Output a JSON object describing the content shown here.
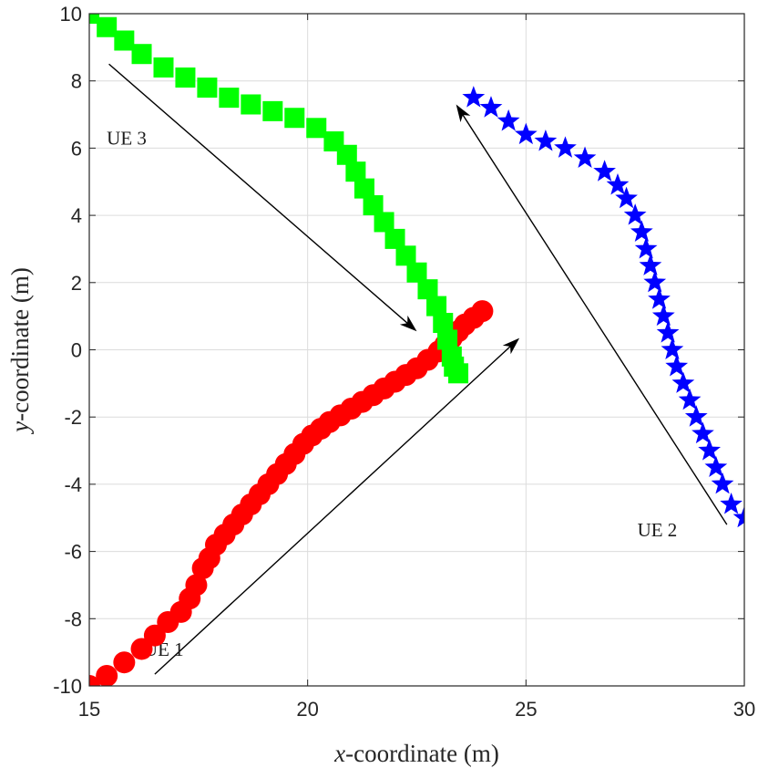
{
  "chart_data": {
    "type": "scatter",
    "title": "",
    "xlabel_var": "x",
    "xlabel_rest": "-coordinate (m)",
    "ylabel_var": "y",
    "ylabel_rest": "-coordinate (m)",
    "xlim": [
      15,
      30
    ],
    "ylim": [
      -10,
      10
    ],
    "xticks": [
      15,
      20,
      25,
      30
    ],
    "yticks": [
      -10,
      -8,
      -6,
      -4,
      -2,
      0,
      2,
      4,
      6,
      8,
      10
    ],
    "grid": true,
    "series": [
      {
        "name": "UE 1",
        "marker": "circle",
        "color": "#ff0000",
        "x": [
          15.0,
          15.4,
          15.8,
          16.2,
          16.5,
          16.8,
          17.1,
          17.3,
          17.45,
          17.6,
          17.75,
          17.9,
          18.1,
          18.3,
          18.5,
          18.7,
          18.9,
          19.1,
          19.3,
          19.5,
          19.7,
          19.9,
          20.1,
          20.3,
          20.5,
          20.75,
          21.0,
          21.25,
          21.5,
          21.75,
          22.0,
          22.25,
          22.5,
          22.75,
          23.0,
          23.15,
          23.3,
          23.45,
          23.6,
          23.8,
          24.0
        ],
        "y": [
          -10.0,
          -9.7,
          -9.3,
          -8.9,
          -8.5,
          -8.1,
          -7.8,
          -7.4,
          -7.0,
          -6.5,
          -6.2,
          -5.8,
          -5.5,
          -5.2,
          -4.9,
          -4.6,
          -4.3,
          -4.0,
          -3.7,
          -3.4,
          -3.1,
          -2.8,
          -2.55,
          -2.35,
          -2.15,
          -1.95,
          -1.75,
          -1.55,
          -1.35,
          -1.15,
          -0.95,
          -0.75,
          -0.55,
          -0.3,
          -0.05,
          0.15,
          0.35,
          0.55,
          0.75,
          0.95,
          1.15
        ]
      },
      {
        "name": "UE 2",
        "marker": "star",
        "color": "#0000ff",
        "x": [
          23.8,
          24.2,
          24.6,
          25.0,
          25.45,
          25.9,
          26.35,
          26.8,
          27.1,
          27.3,
          27.5,
          27.65,
          27.75,
          27.85,
          27.95,
          28.05,
          28.15,
          28.25,
          28.35,
          28.45,
          28.6,
          28.75,
          28.9,
          29.05,
          29.2,
          29.35,
          29.5,
          29.7,
          30.0
        ],
        "y": [
          7.5,
          7.2,
          6.8,
          6.4,
          6.2,
          6.0,
          5.7,
          5.3,
          4.9,
          4.5,
          4.0,
          3.5,
          3.0,
          2.5,
          2.0,
          1.5,
          1.0,
          0.5,
          0.0,
          -0.5,
          -1.0,
          -1.5,
          -2.0,
          -2.5,
          -3.0,
          -3.5,
          -4.0,
          -4.6,
          -5.0
        ]
      },
      {
        "name": "UE 3",
        "marker": "square",
        "color": "#00ff00",
        "x": [
          15.0,
          15.4,
          15.8,
          16.2,
          16.7,
          17.2,
          17.7,
          18.2,
          18.7,
          19.2,
          19.7,
          20.2,
          20.6,
          20.9,
          21.1,
          21.3,
          21.5,
          21.75,
          22.0,
          22.25,
          22.5,
          22.75,
          22.95,
          23.1,
          23.2,
          23.3,
          23.35,
          23.45
        ],
        "y": [
          10.0,
          9.6,
          9.2,
          8.8,
          8.4,
          8.1,
          7.8,
          7.5,
          7.3,
          7.1,
          6.9,
          6.6,
          6.2,
          5.8,
          5.3,
          4.8,
          4.3,
          3.8,
          3.3,
          2.8,
          2.3,
          1.8,
          1.3,
          0.8,
          0.3,
          -0.2,
          -0.5,
          -0.7
        ]
      }
    ],
    "annotations": [
      {
        "text": "UE 1",
        "x": 16.25,
        "y": -9.1,
        "arrow_from": [
          16.5,
          -9.65
        ],
        "arrow_to": [
          24.85,
          0.35
        ]
      },
      {
        "text": "UE 2",
        "x": 27.55,
        "y": -5.55,
        "arrow_from": [
          29.6,
          -5.2
        ],
        "arrow_to": [
          23.4,
          7.3
        ]
      },
      {
        "text": "UE 3",
        "x": 15.4,
        "y": 6.1,
        "arrow_from": [
          15.45,
          8.5
        ],
        "arrow_to": [
          22.5,
          0.55
        ]
      }
    ]
  }
}
